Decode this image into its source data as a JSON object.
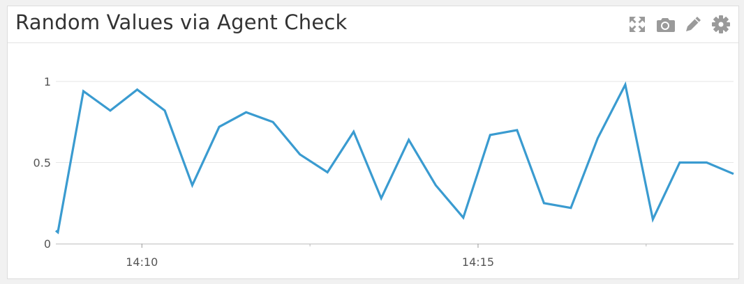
{
  "widget": {
    "title": "Random Values via Agent Check",
    "icons": [
      "expand-icon",
      "camera-icon",
      "pencil-icon",
      "gear-icon"
    ],
    "icon_color": "#9a9a9a"
  },
  "chart_data": {
    "type": "line",
    "title": "Random Values via Agent Check",
    "xlabel": "",
    "ylabel": "",
    "ylim": [
      0,
      1
    ],
    "y_ticks": [
      0,
      0.5,
      1
    ],
    "y_tick_labels": [
      "0",
      "0.5",
      "1"
    ],
    "x_ticks": [
      10,
      15
    ],
    "x_tick_labels": [
      "14:10",
      "14:15"
    ],
    "grid": true,
    "line_color": "#3a9bd0",
    "series": [
      {
        "x": [
          8.72,
          8.75,
          9.13,
          9.53,
          9.93,
          10.34,
          10.75,
          11.15,
          11.55,
          11.95,
          12.35,
          12.76,
          13.15,
          13.56,
          13.97,
          14.37,
          14.78,
          15.18,
          15.58,
          15.98,
          16.38,
          16.78,
          17.19,
          17.6,
          18.0,
          18.4,
          18.8
        ],
        "y": [
          0.08,
          0.07,
          0.94,
          0.82,
          0.95,
          0.82,
          0.36,
          0.72,
          0.81,
          0.75,
          0.55,
          0.44,
          0.69,
          0.28,
          0.64,
          0.36,
          0.16,
          0.67,
          0.7,
          0.25,
          0.22,
          0.65,
          0.98,
          0.15,
          0.5,
          0.5,
          0.43
        ]
      }
    ]
  }
}
